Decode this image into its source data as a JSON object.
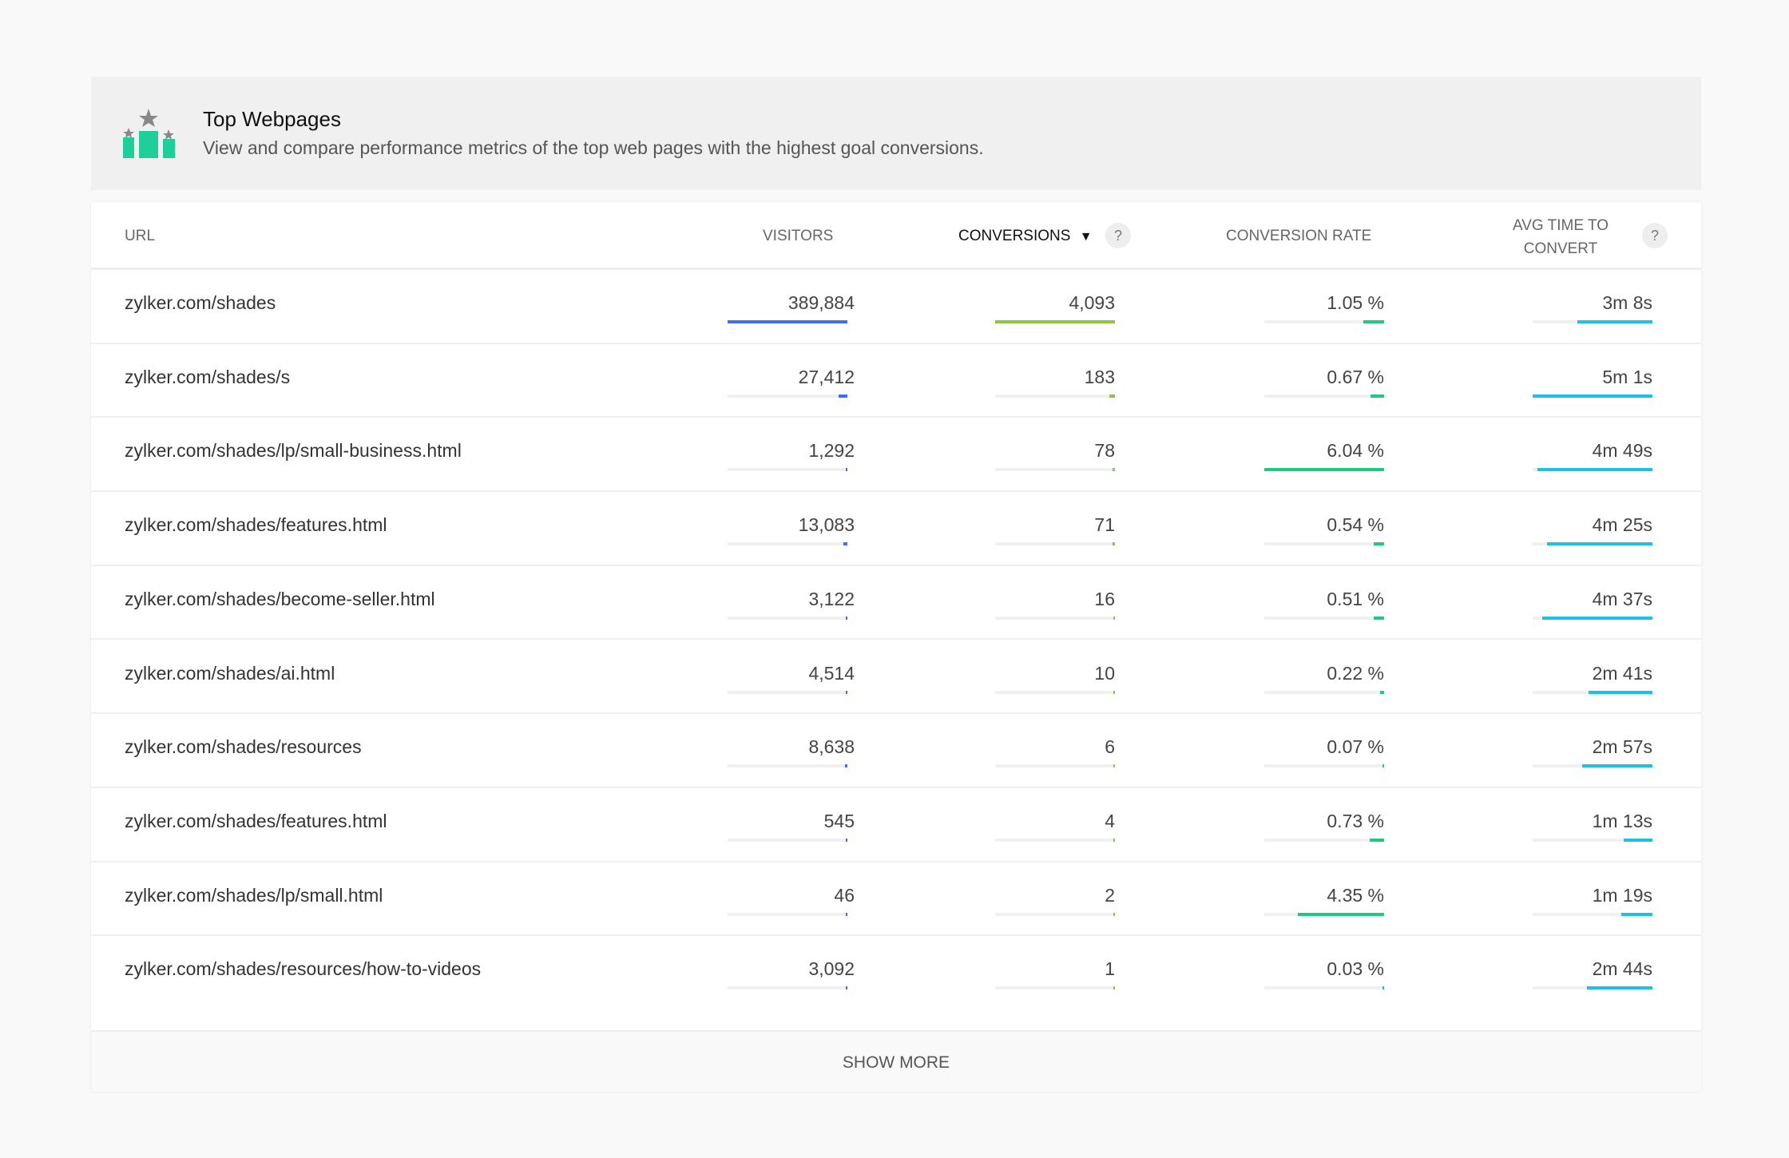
{
  "header": {
    "title": "Top Webpages",
    "description": "View and compare performance metrics of the top web pages with the highest goal conversions.",
    "icon": "podium-stars-icon"
  },
  "columns": {
    "url": "URL",
    "visitors": "VISITORS",
    "conversions": "CONVERSIONS",
    "conversion_rate": "CONVERSION RATE",
    "avg_time_line1": "AVG TIME TO",
    "avg_time_line2": "CONVERT",
    "sort_indicator": "▼",
    "help": "?"
  },
  "colors": {
    "visitors": "#3f6ff0",
    "conversions": "#8bc83f",
    "rate": "#1fc97f",
    "time": "#1ac3e6"
  },
  "rows": [
    {
      "url": "zylker.com/shades",
      "visitors": "389,884",
      "conversions": "4,093",
      "rate": "1.05 %",
      "time": "3m 8s"
    },
    {
      "url": "zylker.com/shades/s",
      "visitors": "27,412",
      "conversions": "183",
      "rate": "0.67 %",
      "time": "5m 1s"
    },
    {
      "url": "zylker.com/shades/lp/small-business.html",
      "visitors": "1,292",
      "conversions": "78",
      "rate": "6.04 %",
      "time": "4m 49s"
    },
    {
      "url": "zylker.com/shades/features.html",
      "visitors": "13,083",
      "conversions": "71",
      "rate": "0.54 %",
      "time": "4m 25s"
    },
    {
      "url": "zylker.com/shades/become-seller.html",
      "visitors": "3,122",
      "conversions": "16",
      "rate": "0.51 %",
      "time": "4m 37s"
    },
    {
      "url": "zylker.com/shades/ai.html",
      "visitors": "4,514",
      "conversions": "10",
      "rate": "0.22 %",
      "time": "2m 41s"
    },
    {
      "url": "zylker.com/shades/resources",
      "visitors": "8,638",
      "conversions": "6",
      "rate": "0.07 %",
      "time": "2m 57s"
    },
    {
      "url": "zylker.com/shades/features.html",
      "visitors": "545",
      "conversions": "4",
      "rate": "0.73 %",
      "time": "1m 13s"
    },
    {
      "url": "zylker.com/shades/lp/small.html",
      "visitors": "46",
      "conversions": "2",
      "rate": "4.35 %",
      "time": "1m 19s"
    },
    {
      "url": "zylker.com/shades/resources/how-to-videos",
      "visitors": "3,092",
      "conversions": "1",
      "rate": "0.03 %",
      "time": "2m 44s"
    }
  ],
  "footer": {
    "show_more": "SHOW MORE"
  }
}
